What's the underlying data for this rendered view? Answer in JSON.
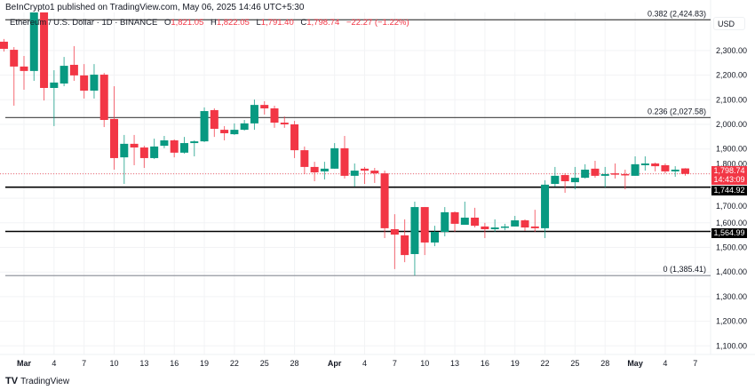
{
  "header": {
    "publisher_line": "BeInCrypto1 published on TradingView.com, May 06, 2025 14:46 UTC+5:30",
    "symbol": "Ethereum / U.S. Dollar · 1D · BINANCE",
    "o_label": "O",
    "o": "1,821.05",
    "h_label": "H",
    "h": "1,822.05",
    "l_label": "L",
    "l": "1,791.40",
    "c_label": "C",
    "c": "1,798.74",
    "change": "−22.27 (−1.22%)"
  },
  "price_axis": {
    "currency": "USD",
    "current_price": "1,798.74",
    "countdown": "14:43:09",
    "marker_1": "1,744.92",
    "marker_2": "1,564.99"
  },
  "footer": {
    "brand": "TradingView"
  },
  "colors": {
    "up": "#089981",
    "down": "#f23645"
  },
  "chart_data": {
    "type": "candlestick",
    "title": "",
    "xlabel": "",
    "ylabel": "USD",
    "ylim": [
      1069,
      2462
    ],
    "grid": true,
    "y_ticks": [
      "1,100.00",
      "1,200.00",
      "1,300.00",
      "1,400.00",
      "1,500.00",
      "1,600.00",
      "1,700.00",
      "1,800.00",
      "1,900.00",
      "2,000.00",
      "2,100.00",
      "2,200.00",
      "2,300.00"
    ],
    "y_tick_values": [
      1100,
      1200,
      1300,
      1400,
      1500,
      1600,
      1700,
      1800,
      1900,
      2000,
      2100,
      2200,
      2300
    ],
    "x_ticks": [
      {
        "date": "2025-03-01",
        "label": "Mar",
        "bold": true
      },
      {
        "date": "2025-03-04",
        "label": "4"
      },
      {
        "date": "2025-03-07",
        "label": "7"
      },
      {
        "date": "2025-03-10",
        "label": "10"
      },
      {
        "date": "2025-03-13",
        "label": "13"
      },
      {
        "date": "2025-03-16",
        "label": "16"
      },
      {
        "date": "2025-03-19",
        "label": "19"
      },
      {
        "date": "2025-03-22",
        "label": "22"
      },
      {
        "date": "2025-03-25",
        "label": "25"
      },
      {
        "date": "2025-03-28",
        "label": "28"
      },
      {
        "date": "2025-04-01",
        "label": "Apr",
        "bold": true
      },
      {
        "date": "2025-04-04",
        "label": "4"
      },
      {
        "date": "2025-04-07",
        "label": "7"
      },
      {
        "date": "2025-04-10",
        "label": "10"
      },
      {
        "date": "2025-04-13",
        "label": "13"
      },
      {
        "date": "2025-04-16",
        "label": "16"
      },
      {
        "date": "2025-04-19",
        "label": "19"
      },
      {
        "date": "2025-04-22",
        "label": "22"
      },
      {
        "date": "2025-04-25",
        "label": "25"
      },
      {
        "date": "2025-04-28",
        "label": "28"
      },
      {
        "date": "2025-05-01",
        "label": "May",
        "bold": true
      },
      {
        "date": "2025-05-04",
        "label": "4"
      },
      {
        "date": "2025-05-07",
        "label": "7"
      }
    ],
    "fib_levels": [
      {
        "label": "0.382 (2,424.83)",
        "value": 2424.83
      },
      {
        "label": "0.236 (2,027.58)",
        "value": 2027.58
      },
      {
        "label": "0 (1,385.41)",
        "value": 1385.41
      }
    ],
    "support_lines": [
      1744.92,
      1564.99
    ],
    "current_price": 1798.74,
    "candles_columns": [
      "date",
      "open",
      "high",
      "low",
      "close"
    ],
    "candles": [
      [
        "2025-02-27",
        2336,
        2347,
        2296,
        2307
      ],
      [
        "2025-02-28",
        2303,
        2314,
        2076,
        2235
      ],
      [
        "2025-03-01",
        2235,
        2278,
        2141,
        2217
      ],
      [
        "2025-03-02",
        2217,
        2550,
        2177,
        2518
      ],
      [
        "2025-03-03",
        2518,
        2520,
        2097,
        2148
      ],
      [
        "2025-03-04",
        2148,
        2220,
        1993,
        2170
      ],
      [
        "2025-03-05",
        2166,
        2274,
        2155,
        2238
      ],
      [
        "2025-03-06",
        2242,
        2318,
        2177,
        2199
      ],
      [
        "2025-03-07",
        2199,
        2245,
        2105,
        2137
      ],
      [
        "2025-03-08",
        2137,
        2245,
        2105,
        2202
      ],
      [
        "2025-03-09",
        2202,
        2209,
        1989,
        2018
      ],
      [
        "2025-03-10",
        2022,
        2155,
        1816,
        1863
      ],
      [
        "2025-03-11",
        1866,
        1957,
        1758,
        1921
      ],
      [
        "2025-03-12",
        1921,
        1957,
        1834,
        1906
      ],
      [
        "2025-03-13",
        1906,
        1913,
        1823,
        1863
      ],
      [
        "2025-03-14",
        1863,
        1942,
        1859,
        1910
      ],
      [
        "2025-03-15",
        1913,
        1953,
        1903,
        1935
      ],
      [
        "2025-03-16",
        1935,
        1939,
        1866,
        1885
      ],
      [
        "2025-03-17",
        1885,
        1949,
        1881,
        1924
      ],
      [
        "2025-03-18",
        1924,
        1935,
        1870,
        1931
      ],
      [
        "2025-03-19",
        1931,
        2069,
        1928,
        2054
      ],
      [
        "2025-03-20",
        2058,
        2065,
        1949,
        1982
      ],
      [
        "2025-03-21",
        1978,
        1993,
        1935,
        1964
      ],
      [
        "2025-03-22",
        1960,
        2004,
        1957,
        1978
      ],
      [
        "2025-03-23",
        1978,
        2018,
        1975,
        2004
      ],
      [
        "2025-03-24",
        2004,
        2101,
        1978,
        2079
      ],
      [
        "2025-03-25",
        2079,
        2094,
        2040,
        2065
      ],
      [
        "2025-03-26",
        2065,
        2076,
        1986,
        2007
      ],
      [
        "2025-03-27",
        2007,
        2032,
        1986,
        2000
      ],
      [
        "2025-03-28",
        2000,
        2014,
        1863,
        1895
      ],
      [
        "2025-03-29",
        1895,
        1910,
        1798,
        1827
      ],
      [
        "2025-03-30",
        1827,
        1848,
        1769,
        1805
      ],
      [
        "2025-03-31",
        1809,
        1848,
        1776,
        1820
      ],
      [
        "2025-04-01",
        1820,
        1924,
        1820,
        1903
      ],
      [
        "2025-04-02",
        1903,
        1953,
        1780,
        1791
      ],
      [
        "2025-04-03",
        1791,
        1841,
        1747,
        1812
      ],
      [
        "2025-04-04",
        1820,
        1827,
        1758,
        1812
      ],
      [
        "2025-04-05",
        1812,
        1823,
        1762,
        1801
      ],
      [
        "2025-04-06",
        1801,
        1812,
        1538,
        1578
      ],
      [
        "2025-04-07",
        1574,
        1635,
        1412,
        1552
      ],
      [
        "2025-04-08",
        1549,
        1614,
        1440,
        1469
      ],
      [
        "2025-04-09",
        1473,
        1686,
        1386,
        1664
      ],
      [
        "2025-04-10",
        1664,
        1664,
        1469,
        1520
      ],
      [
        "2025-04-11",
        1520,
        1588,
        1505,
        1563
      ],
      [
        "2025-04-12",
        1563,
        1664,
        1545,
        1643
      ],
      [
        "2025-04-13",
        1643,
        1646,
        1563,
        1596
      ],
      [
        "2025-04-14",
        1592,
        1686,
        1592,
        1621
      ],
      [
        "2025-04-15",
        1621,
        1661,
        1581,
        1588
      ],
      [
        "2025-04-16",
        1585,
        1600,
        1538,
        1574
      ],
      [
        "2025-04-17",
        1574,
        1614,
        1563,
        1581
      ],
      [
        "2025-04-18",
        1581,
        1596,
        1570,
        1585
      ],
      [
        "2025-04-19",
        1585,
        1628,
        1585,
        1610
      ],
      [
        "2025-04-20",
        1610,
        1614,
        1567,
        1581
      ],
      [
        "2025-04-21",
        1585,
        1653,
        1563,
        1578
      ],
      [
        "2025-04-22",
        1578,
        1773,
        1538,
        1755
      ],
      [
        "2025-04-23",
        1758,
        1827,
        1747,
        1791
      ],
      [
        "2025-04-24",
        1794,
        1801,
        1722,
        1769
      ],
      [
        "2025-04-25",
        1765,
        1827,
        1736,
        1783
      ],
      [
        "2025-04-26",
        1783,
        1838,
        1780,
        1816
      ],
      [
        "2025-04-27",
        1820,
        1852,
        1783,
        1791
      ],
      [
        "2025-04-28",
        1791,
        1827,
        1744,
        1798
      ],
      [
        "2025-04-29",
        1801,
        1841,
        1780,
        1798
      ],
      [
        "2025-04-30",
        1798,
        1816,
        1736,
        1794
      ],
      [
        "2025-05-01",
        1791,
        1870,
        1791,
        1838
      ],
      [
        "2025-05-02",
        1834,
        1870,
        1812,
        1841
      ],
      [
        "2025-05-03",
        1841,
        1845,
        1809,
        1830
      ],
      [
        "2025-05-04",
        1834,
        1841,
        1801,
        1809
      ],
      [
        "2025-05-05",
        1809,
        1830,
        1787,
        1816
      ],
      [
        "2025-05-06",
        1821.05,
        1822.05,
        1791.4,
        1798.74
      ]
    ]
  }
}
